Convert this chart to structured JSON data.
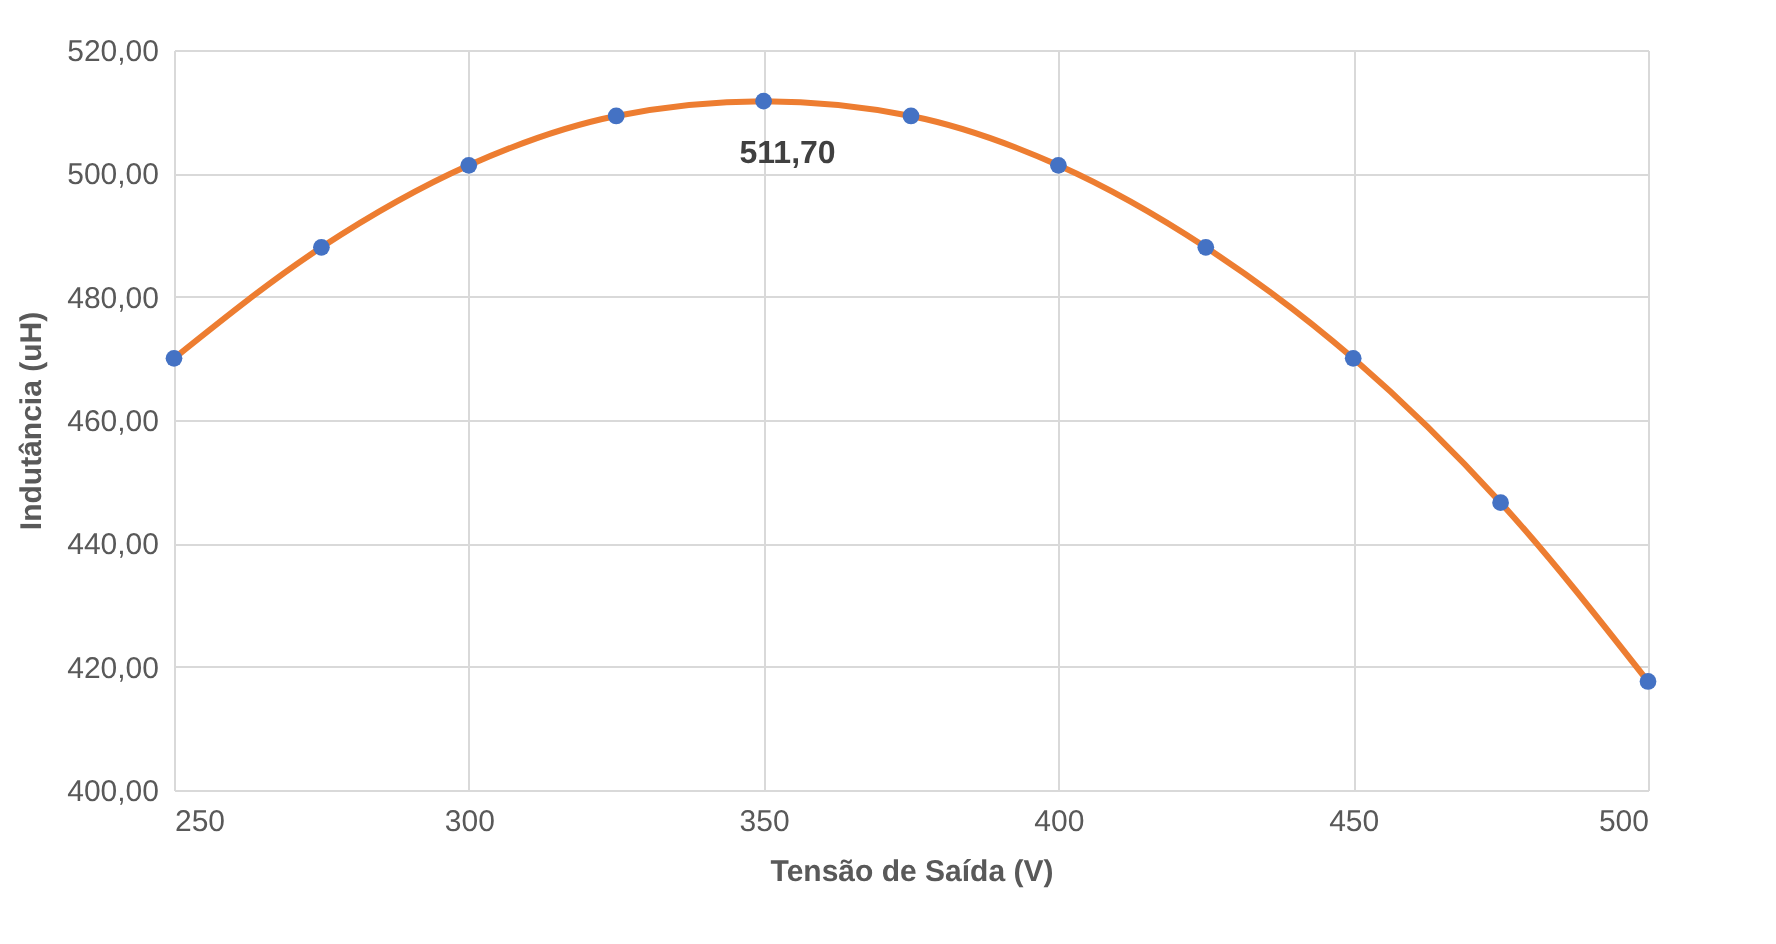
{
  "chart_data": {
    "type": "scatter",
    "xlabel": "Tensão de Saída (V)",
    "ylabel": "Indutância (uH)",
    "x": [
      250,
      275,
      300,
      325,
      350,
      375,
      400,
      425,
      450,
      475,
      500
    ],
    "series": [
      {
        "type": "line",
        "color": "#ed7d31",
        "values": [
          470,
          488,
          501.3,
          509.3,
          511.7,
          509.3,
          501.3,
          488,
          470,
          446.6,
          417.6
        ]
      },
      {
        "color": "#4472c4",
        "marker": "circle",
        "values": [
          470,
          488,
          501.3,
          509.3,
          511.7,
          509.3,
          501.3,
          488,
          470,
          446.6,
          417.6
        ]
      }
    ],
    "xlim": [
      250,
      500
    ],
    "xticks": [
      250,
      300,
      350,
      400,
      450,
      500
    ],
    "ylim": [
      400,
      520
    ],
    "yticks": [
      {
        "value": 400,
        "label": "400,00"
      },
      {
        "value": 420,
        "label": "420,00"
      },
      {
        "value": 440,
        "label": "440,00"
      },
      {
        "value": 460,
        "label": "460,00"
      },
      {
        "value": 480,
        "label": "480,00"
      },
      {
        "value": 500,
        "label": "500,00"
      },
      {
        "value": 520,
        "label": "520,00"
      }
    ],
    "grid": true,
    "annotations": [
      {
        "text": "511,70",
        "x": 350,
        "y": 511.7
      }
    ]
  }
}
